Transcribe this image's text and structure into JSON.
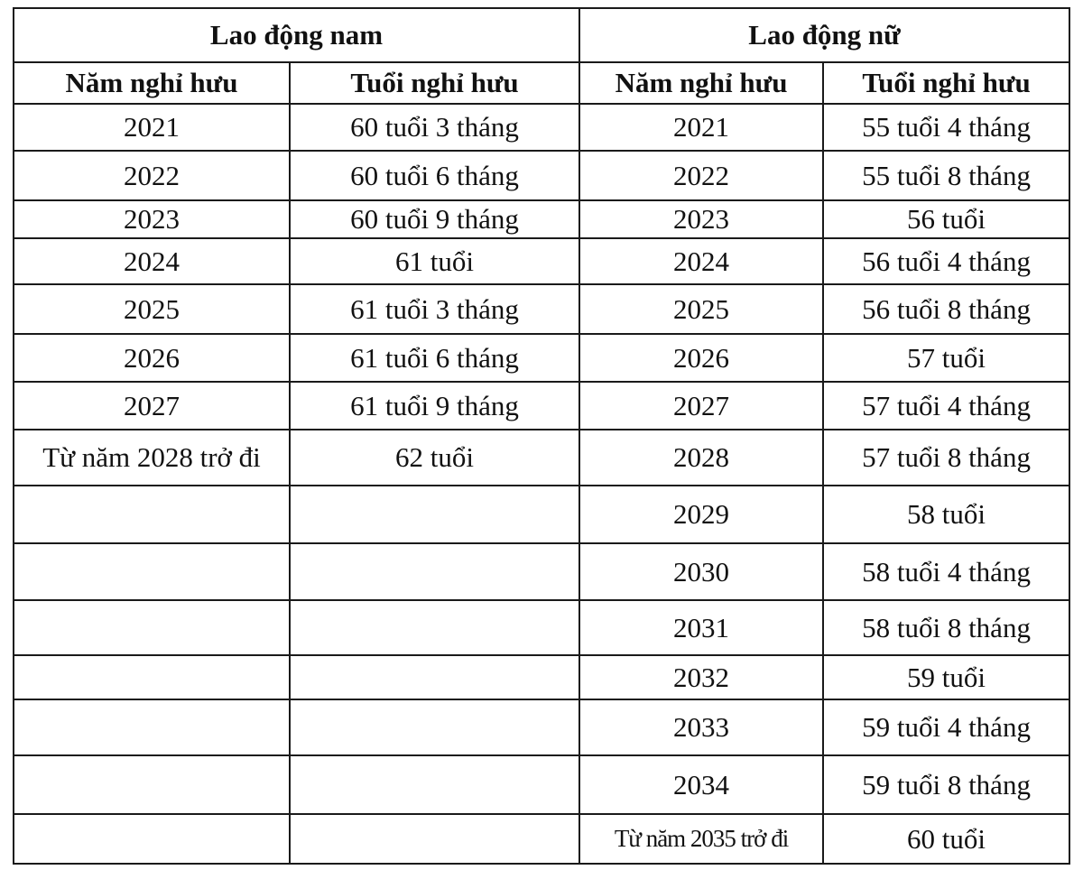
{
  "groups": [
    "Lao động nam",
    "Lao động nữ"
  ],
  "columns": [
    "Năm nghỉ hưu",
    "Tuổi nghỉ hưu",
    "Năm nghỉ hưu",
    "Tuổi nghỉ hưu"
  ],
  "rows": [
    [
      "2021",
      "60 tuổi 3 tháng",
      "2021",
      "55 tuổi 4 tháng"
    ],
    [
      "2022",
      "60 tuổi 6 tháng",
      "2022",
      "55 tuổi 8 tháng"
    ],
    [
      "2023",
      "60 tuổi 9 tháng",
      "2023",
      "56 tuổi"
    ],
    [
      "2024",
      "61 tuổi",
      "2024",
      "56 tuổi 4 tháng"
    ],
    [
      "2025",
      "61 tuổi 3 tháng",
      "2025",
      "56 tuổi 8 tháng"
    ],
    [
      "2026",
      "61 tuổi 6 tháng",
      "2026",
      "57 tuổi"
    ],
    [
      "2027",
      "61 tuổi 9 tháng",
      "2027",
      "57 tuổi 4 tháng"
    ],
    [
      "Từ năm 2028 trở đi",
      "62 tuổi",
      "2028",
      "57 tuổi 8 tháng"
    ],
    [
      "",
      "",
      "2029",
      "58 tuổi"
    ],
    [
      "",
      "",
      "2030",
      "58 tuổi 4 tháng"
    ],
    [
      "",
      "",
      "2031",
      "58 tuổi 8 tháng"
    ],
    [
      "",
      "",
      "2032",
      "59 tuổi"
    ],
    [
      "",
      "",
      "2033",
      "59 tuổi 4 tháng"
    ],
    [
      "",
      "",
      "2034",
      "59 tuổi 8 tháng"
    ],
    [
      "",
      "",
      "Từ năm 2035 trở đi",
      "60 tuổi"
    ]
  ]
}
